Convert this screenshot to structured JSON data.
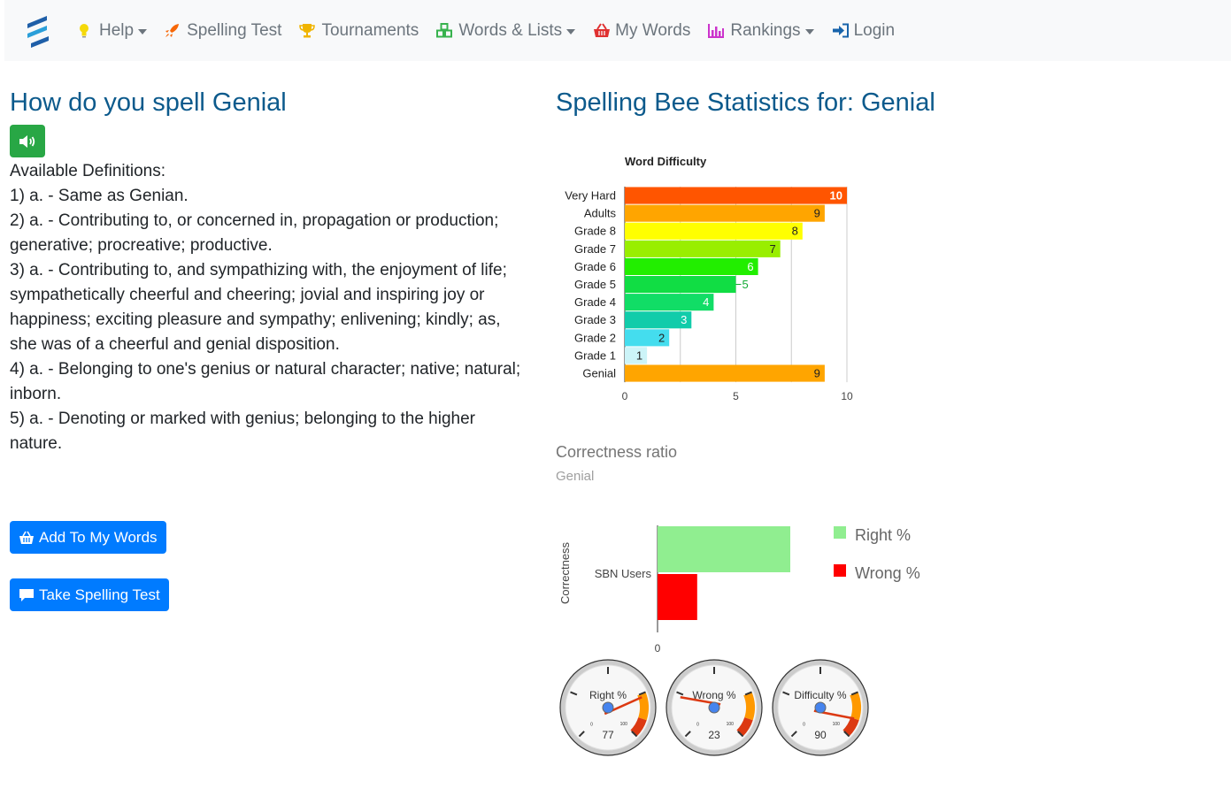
{
  "nav": {
    "brand_icon": "logo-icon",
    "items": [
      {
        "label": "Help",
        "icon": "lightbulb-icon",
        "dropdown": true,
        "color": "#f5d90a"
      },
      {
        "label": "Spelling Test",
        "icon": "rocket-icon",
        "dropdown": false,
        "color": "#f76707"
      },
      {
        "label": "Tournaments",
        "icon": "trophy-icon",
        "dropdown": false,
        "color": "#f0b400"
      },
      {
        "label": "Words & Lists",
        "icon": "cubes-icon",
        "dropdown": true,
        "color": "#37b24d"
      },
      {
        "label": "My Words",
        "icon": "basket-icon",
        "dropdown": false,
        "color": "#e03131"
      },
      {
        "label": "Rankings",
        "icon": "chart-icon",
        "dropdown": true,
        "color": "#cc33cc"
      },
      {
        "label": "Login",
        "icon": "sign-in-icon",
        "dropdown": false,
        "color": "#1864ab"
      }
    ]
  },
  "word": {
    "title": "How do you spell Genial",
    "audio_icon": "speaker-icon",
    "definitions_heading": "Available Definitions:",
    "definitions": [
      "1)  a. - Same as Genian.",
      "2)  a. - Contributing to, or concerned in, propagation or production; generative; procreative; productive.",
      "3)  a. - Contributing to, and sympathizing with, the enjoyment of life; sympathetically cheerful and cheering; jovial and inspiring joy or happiness; exciting pleasure and sympathy; enlivening; kindly; as, she was of a cheerful and genial disposition.",
      "4)  a. - Belonging to one's genius or natural character; native; natural; inborn.",
      "5)  a. - Denoting or marked with genius; belonging to the higher nature."
    ],
    "add_button": "Add To My Words",
    "test_button": "Take Spelling Test"
  },
  "stats": {
    "title": "Spelling Bee Statistics for: Genial",
    "correctness_title": "Correctness ratio",
    "correctness_subtitle": "Genial"
  },
  "chart_data": [
    {
      "type": "bar",
      "orientation": "horizontal",
      "title": "Word Difficulty",
      "categories": [
        "Very Hard",
        "Adults",
        "Grade 8",
        "Grade 7",
        "Grade 6",
        "Grade 5",
        "Grade 4",
        "Grade 3",
        "Grade 2",
        "Grade 1",
        "Genial"
      ],
      "values": [
        10,
        9,
        8,
        7,
        6,
        5,
        4,
        3,
        2,
        1,
        9
      ],
      "colors": [
        "#ff5500",
        "#ffa500",
        "#ffff00",
        "#99ee00",
        "#22ee00",
        "#11dd44",
        "#11dd66",
        "#11ccaa",
        "#44ddee",
        "#ccf4f8",
        "#ffa500"
      ],
      "xlim": [
        0,
        10
      ],
      "xticks": [
        0,
        5,
        10
      ],
      "grid": true
    },
    {
      "type": "bar",
      "orientation": "horizontal",
      "ylabel": "Correctness",
      "categories": [
        "SBN Users"
      ],
      "series": [
        {
          "name": "Right %",
          "values": [
            77
          ],
          "color": "#90ee90"
        },
        {
          "name": "Wrong %",
          "values": [
            23
          ],
          "color": "#ff0000"
        }
      ],
      "xticks": [
        0
      ],
      "legend": "right"
    },
    {
      "type": "gauge",
      "gauges": [
        {
          "label": "Right %",
          "value": 77,
          "min_label": "0",
          "max_label": "100"
        },
        {
          "label": "Wrong %",
          "value": 23,
          "min_label": "0",
          "max_label": "100"
        },
        {
          "label": "Difficulty %",
          "value": 90,
          "min_label": "0",
          "max_label": "100"
        }
      ]
    }
  ]
}
